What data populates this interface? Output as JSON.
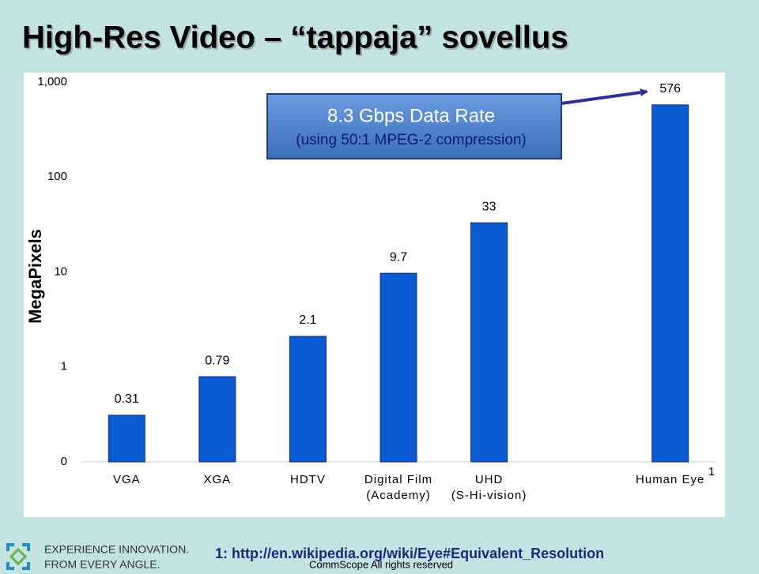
{
  "header": {
    "title": "High-Res Video – “tappaja” sovellus"
  },
  "chart_data": {
    "type": "bar",
    "log_scale": true,
    "grid": false,
    "ylabel": "MegaPixels",
    "categories": [
      "VGA",
      "XGA",
      "HDTV",
      "Digital Film\n(Academy)",
      "UHD\n(S-Hi-vision)",
      null,
      "Human Eye"
    ],
    "values": [
      0.31,
      0.79,
      2.1,
      9.7,
      33,
      null,
      576
    ],
    "color": "#0a5ad2",
    "ylim": [
      0.1,
      1000
    ],
    "yticks": [
      {
        "value": 0.1,
        "label": "0"
      },
      1,
      10,
      100,
      {
        "value": 1000,
        "label": "1,000"
      }
    ],
    "footnote_marker": "1",
    "callout": {
      "title": "8.3 Gbps Data Rate",
      "subtitle": "(using 50:1 MPEG-2 compression)"
    }
  },
  "footer": {
    "logo_line1": "EXPERIENCE INNOVATION.",
    "logo_line2": "FROM EVERY ANGLE.",
    "footnote": "1: http://en.wikipedia.org/wiki/Eye#Equivalent_Resolution",
    "copyright": "CommScope All rights reserved"
  }
}
